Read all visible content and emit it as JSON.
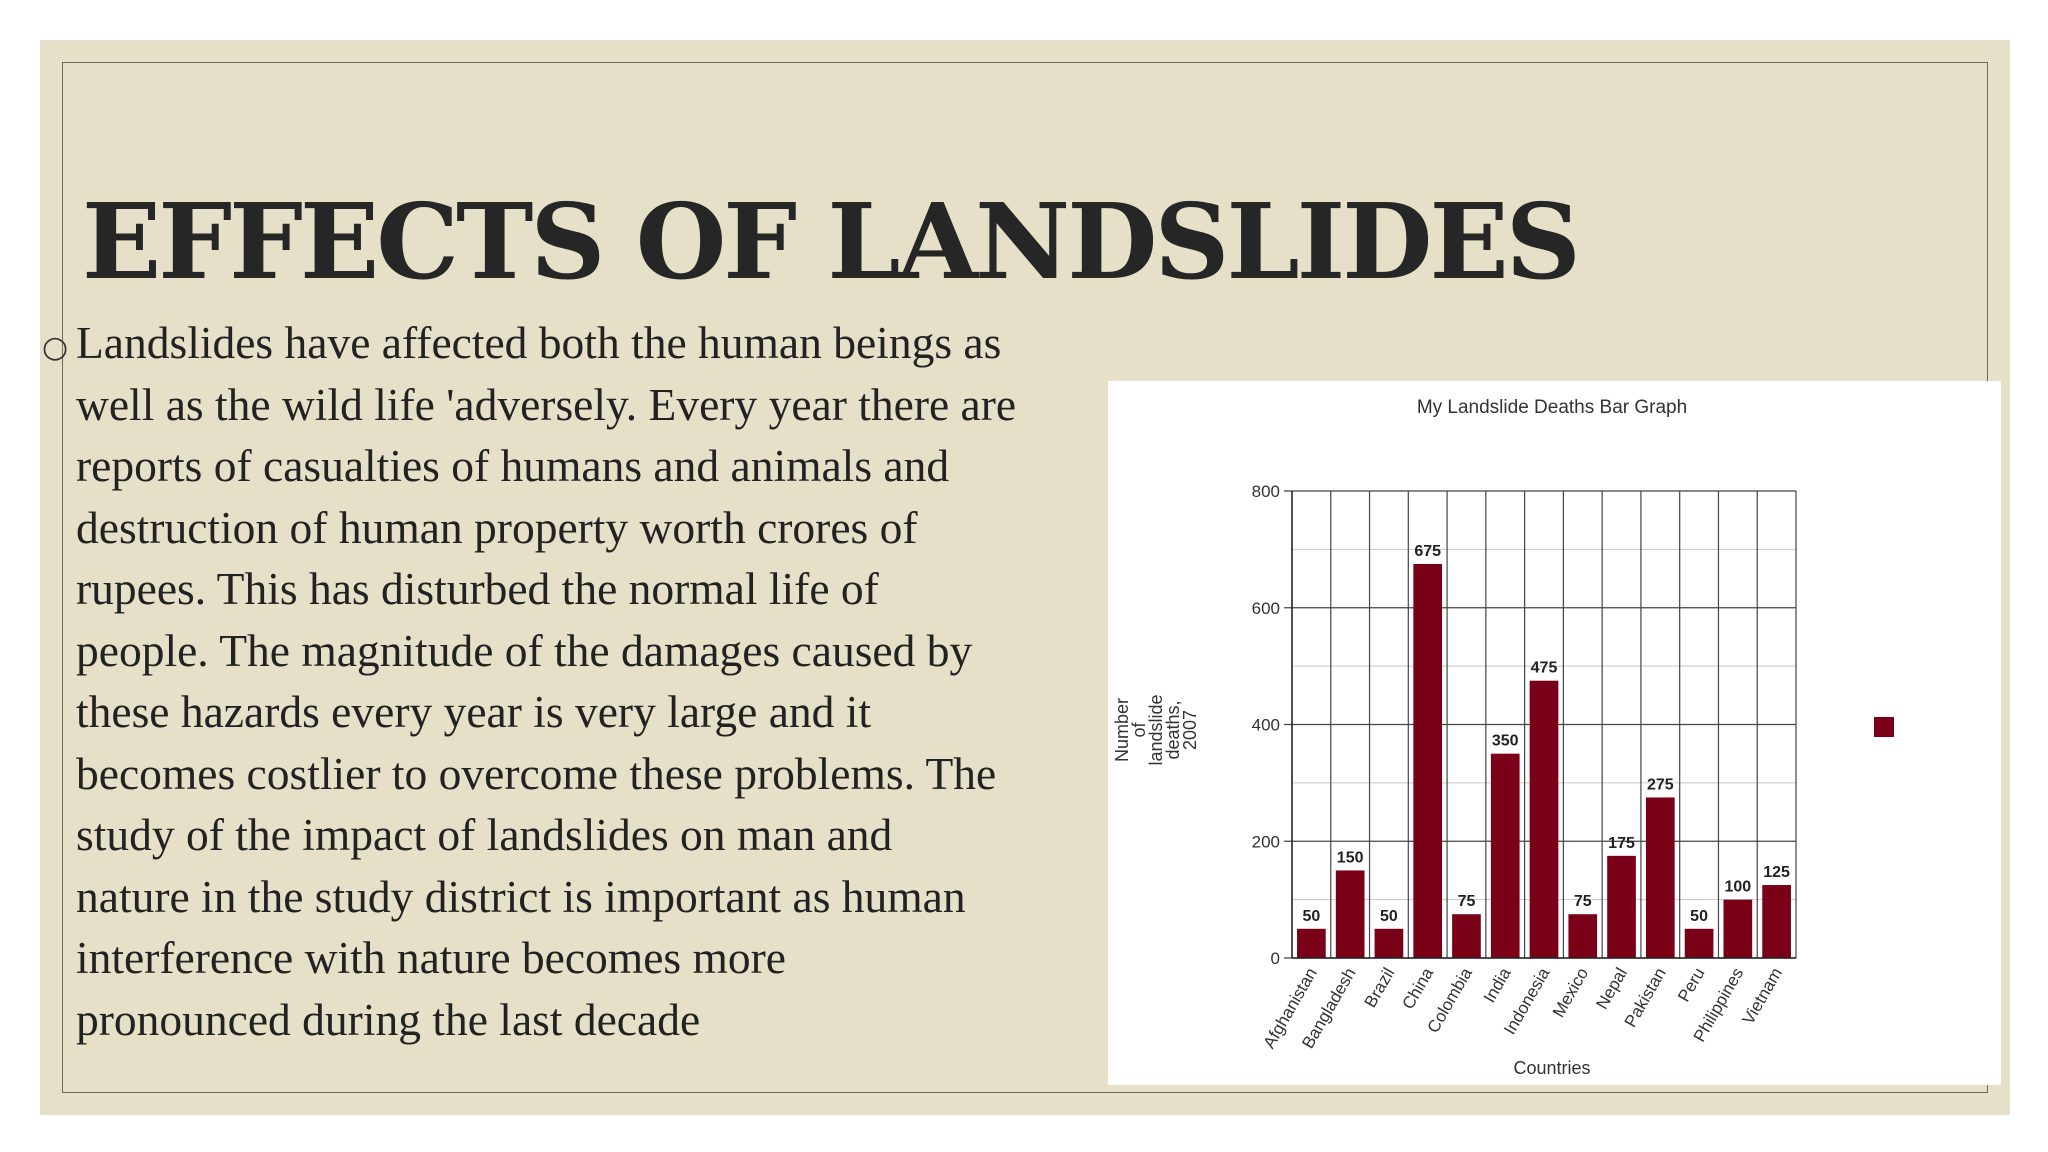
{
  "slide": {
    "title": "EFFECTS OF LANDSLIDES",
    "body": "Landslides have affected both the human beings as\nwell as the wild life 'adversely. Every year there are\nreports of casualties of humans and animals and\ndestruction of human property worth crores of\nrupees. This has disturbed the normal life of\npeople. The magnitude of the damages caused by\nthese hazards every year is very large and it\nbecomes costlier to overcome these problems. The\nstudy of the impact of landslides on man and\nnature in the study district is important as human\ninterference with nature becomes more\npronounced during the last decade"
  },
  "chart_data": {
    "type": "bar",
    "title": "My Landslide Deaths Bar Graph",
    "xlabel": "Countries",
    "ylabel_lines": [
      "Number",
      "of",
      "landslide",
      "deaths,",
      "2007"
    ],
    "categories": [
      "Afghanistan",
      "Bangladesh",
      "Brazil",
      "China",
      "Colombia",
      "India",
      "Indonesia",
      "Mexico",
      "Nepal",
      "Pakistan",
      "Peru",
      "Philippines",
      "Vietnam"
    ],
    "values": [
      50,
      150,
      50,
      675,
      75,
      350,
      475,
      75,
      175,
      275,
      50,
      100,
      125
    ],
    "ylim": [
      0,
      800
    ],
    "yticks": [
      0,
      200,
      400,
      600,
      800
    ],
    "grid": true,
    "bar_color": "#7a0018",
    "legend": {
      "placement": "right",
      "color": "#7a0018"
    }
  }
}
